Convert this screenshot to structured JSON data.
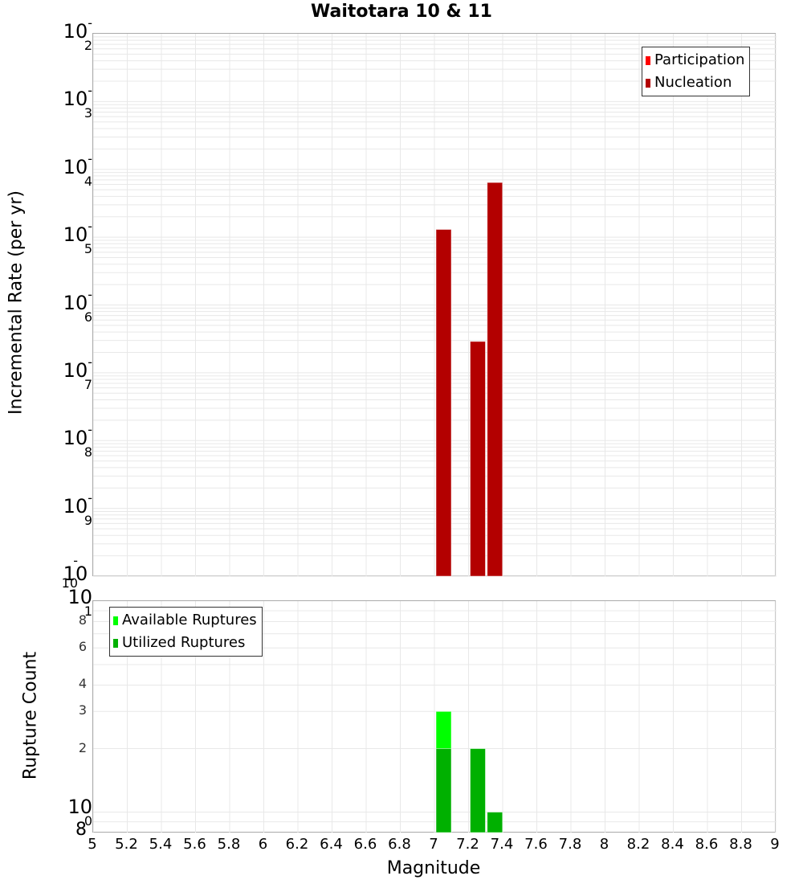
{
  "title": "Waitotara 10 & 11",
  "colors": {
    "participation": "#ff0000",
    "nucleation": "#b30000",
    "available": "#00ff00",
    "utilized": "#00b000",
    "grid": "#e8e8e8",
    "axis": "#aaaaaa"
  },
  "top_chart": {
    "ylabel": "Incremental Rate (per yr)",
    "yticks": [
      {
        "base": "10",
        "exp": "-2"
      },
      {
        "base": "10",
        "exp": "-3"
      },
      {
        "base": "10",
        "exp": "-4"
      },
      {
        "base": "10",
        "exp": "-5"
      },
      {
        "base": "10",
        "exp": "-6"
      },
      {
        "base": "10",
        "exp": "-7"
      },
      {
        "base": "10",
        "exp": "-8"
      },
      {
        "base": "10",
        "exp": "-9"
      },
      {
        "base": "10",
        "exp": "-10"
      }
    ],
    "legend": [
      {
        "label": "Participation",
        "color": "#ff0000"
      },
      {
        "label": "Nucleation",
        "color": "#b30000"
      }
    ]
  },
  "bottom_chart": {
    "ylabel": "Rupture Count",
    "yticks_major": [
      {
        "base": "10",
        "exp": "1"
      },
      {
        "base": "10",
        "exp": "0"
      }
    ],
    "yticks_minor": [
      "8",
      "6",
      "4",
      "3",
      "2"
    ],
    "ytick_bottom": "8",
    "legend": [
      {
        "label": "Available Ruptures",
        "color": "#00ff00"
      },
      {
        "label": "Utilized Ruptures",
        "color": "#00b000"
      }
    ]
  },
  "xaxis": {
    "label": "Magnitude",
    "ticks": [
      "5",
      "5.2",
      "5.4",
      "5.6",
      "5.8",
      "6",
      "6.2",
      "6.4",
      "6.6",
      "6.8",
      "7",
      "7.2",
      "7.4",
      "7.6",
      "7.8",
      "8",
      "8.2",
      "8.4",
      "8.6",
      "8.8",
      "9"
    ]
  },
  "chart_data": [
    {
      "type": "bar",
      "title": "Waitotara 10 & 11",
      "xlabel": "Magnitude",
      "ylabel": "Incremental Rate (per yr)",
      "yscale": "log",
      "xlim": [
        5,
        9
      ],
      "ylim": [
        1e-10,
        0.01
      ],
      "grid": true,
      "legend_position": "top-right",
      "x": [
        7.05,
        7.25,
        7.35
      ],
      "series": [
        {
          "name": "Participation",
          "color": "#ff0000",
          "values": [
            1.3e-05,
            2.9e-07,
            6.4e-05
          ]
        },
        {
          "name": "Nucleation",
          "color": "#b30000",
          "values": [
            1.3e-05,
            2.9e-07,
            6.4e-05
          ]
        }
      ]
    },
    {
      "type": "bar",
      "title": "",
      "xlabel": "Magnitude",
      "ylabel": "Rupture Count",
      "yscale": "log",
      "xlim": [
        5,
        9
      ],
      "ylim": [
        0.8,
        10
      ],
      "grid": true,
      "legend_position": "top-left",
      "x": [
        7.05,
        7.25,
        7.35
      ],
      "series": [
        {
          "name": "Available Ruptures",
          "color": "#00ff00",
          "values": [
            3,
            2,
            1
          ]
        },
        {
          "name": "Utilized Ruptures",
          "color": "#00b000",
          "values": [
            2,
            2,
            1
          ]
        }
      ]
    }
  ]
}
